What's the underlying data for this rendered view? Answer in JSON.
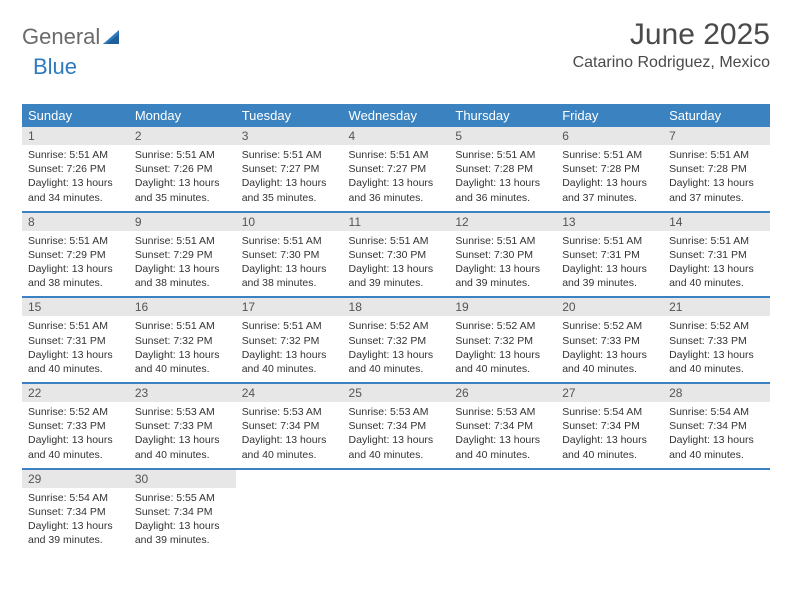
{
  "logo": {
    "general": "General",
    "blue": "Blue"
  },
  "title": "June 2025",
  "location": "Catarino Rodriguez, Mexico",
  "colors": {
    "header_bg": "#3b83c0",
    "header_text": "#ffffff",
    "daynum_bg": "#e7e7e7",
    "body_text": "#333333",
    "title_text": "#4a4a4a",
    "logo_gray": "#6b6b6b",
    "logo_blue": "#2f7abf"
  },
  "day_names": [
    "Sunday",
    "Monday",
    "Tuesday",
    "Wednesday",
    "Thursday",
    "Friday",
    "Saturday"
  ],
  "cells": {
    "d1": {
      "n": "1",
      "sr": "Sunrise: 5:51 AM",
      "ss": "Sunset: 7:26 PM",
      "dl1": "Daylight: 13 hours",
      "dl2": "and 34 minutes."
    },
    "d2": {
      "n": "2",
      "sr": "Sunrise: 5:51 AM",
      "ss": "Sunset: 7:26 PM",
      "dl1": "Daylight: 13 hours",
      "dl2": "and 35 minutes."
    },
    "d3": {
      "n": "3",
      "sr": "Sunrise: 5:51 AM",
      "ss": "Sunset: 7:27 PM",
      "dl1": "Daylight: 13 hours",
      "dl2": "and 35 minutes."
    },
    "d4": {
      "n": "4",
      "sr": "Sunrise: 5:51 AM",
      "ss": "Sunset: 7:27 PM",
      "dl1": "Daylight: 13 hours",
      "dl2": "and 36 minutes."
    },
    "d5": {
      "n": "5",
      "sr": "Sunrise: 5:51 AM",
      "ss": "Sunset: 7:28 PM",
      "dl1": "Daylight: 13 hours",
      "dl2": "and 36 minutes."
    },
    "d6": {
      "n": "6",
      "sr": "Sunrise: 5:51 AM",
      "ss": "Sunset: 7:28 PM",
      "dl1": "Daylight: 13 hours",
      "dl2": "and 37 minutes."
    },
    "d7": {
      "n": "7",
      "sr": "Sunrise: 5:51 AM",
      "ss": "Sunset: 7:28 PM",
      "dl1": "Daylight: 13 hours",
      "dl2": "and 37 minutes."
    },
    "d8": {
      "n": "8",
      "sr": "Sunrise: 5:51 AM",
      "ss": "Sunset: 7:29 PM",
      "dl1": "Daylight: 13 hours",
      "dl2": "and 38 minutes."
    },
    "d9": {
      "n": "9",
      "sr": "Sunrise: 5:51 AM",
      "ss": "Sunset: 7:29 PM",
      "dl1": "Daylight: 13 hours",
      "dl2": "and 38 minutes."
    },
    "d10": {
      "n": "10",
      "sr": "Sunrise: 5:51 AM",
      "ss": "Sunset: 7:30 PM",
      "dl1": "Daylight: 13 hours",
      "dl2": "and 38 minutes."
    },
    "d11": {
      "n": "11",
      "sr": "Sunrise: 5:51 AM",
      "ss": "Sunset: 7:30 PM",
      "dl1": "Daylight: 13 hours",
      "dl2": "and 39 minutes."
    },
    "d12": {
      "n": "12",
      "sr": "Sunrise: 5:51 AM",
      "ss": "Sunset: 7:30 PM",
      "dl1": "Daylight: 13 hours",
      "dl2": "and 39 minutes."
    },
    "d13": {
      "n": "13",
      "sr": "Sunrise: 5:51 AM",
      "ss": "Sunset: 7:31 PM",
      "dl1": "Daylight: 13 hours",
      "dl2": "and 39 minutes."
    },
    "d14": {
      "n": "14",
      "sr": "Sunrise: 5:51 AM",
      "ss": "Sunset: 7:31 PM",
      "dl1": "Daylight: 13 hours",
      "dl2": "and 40 minutes."
    },
    "d15": {
      "n": "15",
      "sr": "Sunrise: 5:51 AM",
      "ss": "Sunset: 7:31 PM",
      "dl1": "Daylight: 13 hours",
      "dl2": "and 40 minutes."
    },
    "d16": {
      "n": "16",
      "sr": "Sunrise: 5:51 AM",
      "ss": "Sunset: 7:32 PM",
      "dl1": "Daylight: 13 hours",
      "dl2": "and 40 minutes."
    },
    "d17": {
      "n": "17",
      "sr": "Sunrise: 5:51 AM",
      "ss": "Sunset: 7:32 PM",
      "dl1": "Daylight: 13 hours",
      "dl2": "and 40 minutes."
    },
    "d18": {
      "n": "18",
      "sr": "Sunrise: 5:52 AM",
      "ss": "Sunset: 7:32 PM",
      "dl1": "Daylight: 13 hours",
      "dl2": "and 40 minutes."
    },
    "d19": {
      "n": "19",
      "sr": "Sunrise: 5:52 AM",
      "ss": "Sunset: 7:32 PM",
      "dl1": "Daylight: 13 hours",
      "dl2": "and 40 minutes."
    },
    "d20": {
      "n": "20",
      "sr": "Sunrise: 5:52 AM",
      "ss": "Sunset: 7:33 PM",
      "dl1": "Daylight: 13 hours",
      "dl2": "and 40 minutes."
    },
    "d21": {
      "n": "21",
      "sr": "Sunrise: 5:52 AM",
      "ss": "Sunset: 7:33 PM",
      "dl1": "Daylight: 13 hours",
      "dl2": "and 40 minutes."
    },
    "d22": {
      "n": "22",
      "sr": "Sunrise: 5:52 AM",
      "ss": "Sunset: 7:33 PM",
      "dl1": "Daylight: 13 hours",
      "dl2": "and 40 minutes."
    },
    "d23": {
      "n": "23",
      "sr": "Sunrise: 5:53 AM",
      "ss": "Sunset: 7:33 PM",
      "dl1": "Daylight: 13 hours",
      "dl2": "and 40 minutes."
    },
    "d24": {
      "n": "24",
      "sr": "Sunrise: 5:53 AM",
      "ss": "Sunset: 7:34 PM",
      "dl1": "Daylight: 13 hours",
      "dl2": "and 40 minutes."
    },
    "d25": {
      "n": "25",
      "sr": "Sunrise: 5:53 AM",
      "ss": "Sunset: 7:34 PM",
      "dl1": "Daylight: 13 hours",
      "dl2": "and 40 minutes."
    },
    "d26": {
      "n": "26",
      "sr": "Sunrise: 5:53 AM",
      "ss": "Sunset: 7:34 PM",
      "dl1": "Daylight: 13 hours",
      "dl2": "and 40 minutes."
    },
    "d27": {
      "n": "27",
      "sr": "Sunrise: 5:54 AM",
      "ss": "Sunset: 7:34 PM",
      "dl1": "Daylight: 13 hours",
      "dl2": "and 40 minutes."
    },
    "d28": {
      "n": "28",
      "sr": "Sunrise: 5:54 AM",
      "ss": "Sunset: 7:34 PM",
      "dl1": "Daylight: 13 hours",
      "dl2": "and 40 minutes."
    },
    "d29": {
      "n": "29",
      "sr": "Sunrise: 5:54 AM",
      "ss": "Sunset: 7:34 PM",
      "dl1": "Daylight: 13 hours",
      "dl2": "and 39 minutes."
    },
    "d30": {
      "n": "30",
      "sr": "Sunrise: 5:55 AM",
      "ss": "Sunset: 7:34 PM",
      "dl1": "Daylight: 13 hours",
      "dl2": "and 39 minutes."
    }
  }
}
